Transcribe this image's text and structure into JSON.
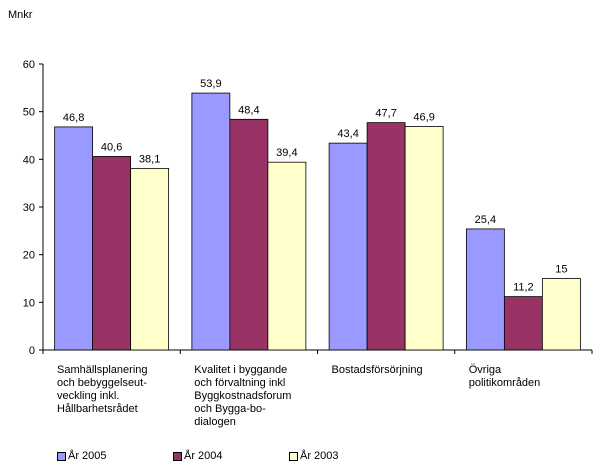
{
  "chart_data": {
    "type": "bar",
    "ylabel": "Mnkr",
    "ylim": [
      0,
      60
    ],
    "yticks": [
      0,
      10,
      20,
      30,
      40,
      50,
      60
    ],
    "grid": false,
    "legend_position": "bottom",
    "categories": [
      [
        "Samhällsplanering",
        "och bebyggelseut-",
        "veckling inkl.",
        "Hållbarhetsrådet"
      ],
      [
        "Kvalitet i byggande",
        "och förvaltning inkl",
        "Byggkostnadsforum",
        "och Bygga-bo-",
        "dialogen"
      ],
      [
        "Bostadsförsörjning"
      ],
      [
        "Övriga",
        "politikområden"
      ]
    ],
    "series": [
      {
        "name": "År 2005",
        "color": "#9999ff",
        "values": [
          46.8,
          53.9,
          43.4,
          25.4
        ],
        "labels": [
          "46,8",
          "53,9",
          "43,4",
          "25,4"
        ]
      },
      {
        "name": "År 2004",
        "color": "#993366",
        "values": [
          40.6,
          48.4,
          47.7,
          11.2
        ],
        "labels": [
          "40,6",
          "48,4",
          "47,7",
          "11,2"
        ]
      },
      {
        "name": "År 2003",
        "color": "#ffffcc",
        "values": [
          38.1,
          39.4,
          46.9,
          15
        ],
        "labels": [
          "38,1",
          "39,4",
          "46,9",
          "15"
        ]
      }
    ]
  }
}
